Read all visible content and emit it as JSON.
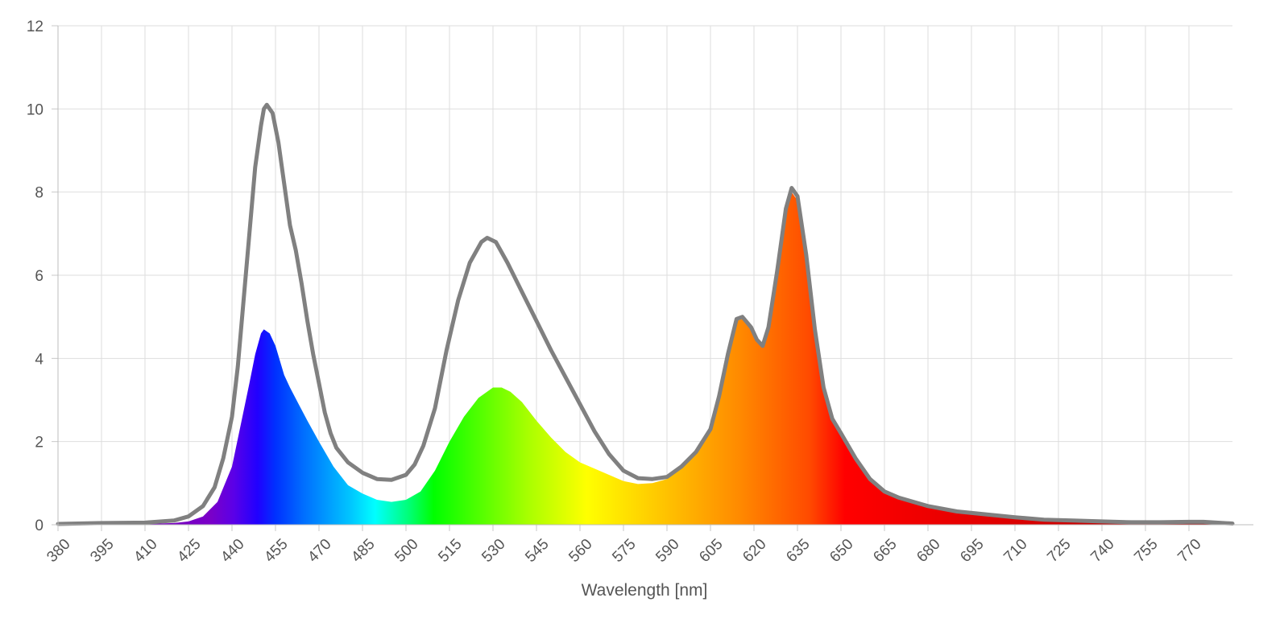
{
  "chart_data": {
    "type": "area",
    "xlabel": "Wavelength [nm]",
    "ylabel": "",
    "xlim": [
      380,
      785
    ],
    "ylim": [
      0,
      12
    ],
    "grid": true,
    "x_ticks": [
      380,
      395,
      410,
      425,
      440,
      455,
      470,
      485,
      500,
      515,
      530,
      545,
      560,
      575,
      590,
      605,
      620,
      635,
      650,
      665,
      680,
      695,
      710,
      725,
      740,
      755,
      770
    ],
    "x_tick_labels": [
      "380",
      "395",
      "410",
      "425",
      "440",
      "455",
      "470",
      "485",
      "500",
      "515",
      "530",
      "545",
      "560",
      "575",
      "590",
      "605",
      "620",
      "635",
      "650",
      "665",
      "680",
      "695",
      "710",
      "725",
      "740",
      "755",
      "770"
    ],
    "y_ticks": [
      0,
      2,
      4,
      6,
      8,
      10,
      12
    ],
    "y_tick_labels": [
      "0",
      "2",
      "4",
      "6",
      "8",
      "10",
      "12"
    ],
    "series": [
      {
        "style": "filled-spectrum",
        "points": [
          [
            380,
            0.02
          ],
          [
            395,
            0.03
          ],
          [
            410,
            0.02
          ],
          [
            420,
            0.04
          ],
          [
            425,
            0.08
          ],
          [
            430,
            0.2
          ],
          [
            435,
            0.55
          ],
          [
            440,
            1.4
          ],
          [
            443,
            2.4
          ],
          [
            446,
            3.4
          ],
          [
            448,
            4.1
          ],
          [
            450,
            4.6
          ],
          [
            451,
            4.7
          ],
          [
            453,
            4.6
          ],
          [
            455,
            4.3
          ],
          [
            458,
            3.6
          ],
          [
            460,
            3.3
          ],
          [
            463,
            2.9
          ],
          [
            466,
            2.5
          ],
          [
            470,
            2.0
          ],
          [
            475,
            1.4
          ],
          [
            480,
            0.95
          ],
          [
            485,
            0.75
          ],
          [
            490,
            0.6
          ],
          [
            495,
            0.55
          ],
          [
            500,
            0.6
          ],
          [
            505,
            0.8
          ],
          [
            510,
            1.3
          ],
          [
            515,
            2.0
          ],
          [
            520,
            2.6
          ],
          [
            525,
            3.05
          ],
          [
            530,
            3.3
          ],
          [
            533,
            3.3
          ],
          [
            536,
            3.2
          ],
          [
            540,
            2.95
          ],
          [
            545,
            2.5
          ],
          [
            550,
            2.1
          ],
          [
            555,
            1.75
          ],
          [
            560,
            1.5
          ],
          [
            565,
            1.35
          ],
          [
            570,
            1.2
          ],
          [
            575,
            1.05
          ],
          [
            580,
            0.98
          ],
          [
            585,
            1.0
          ],
          [
            590,
            1.1
          ],
          [
            595,
            1.35
          ],
          [
            600,
            1.75
          ],
          [
            605,
            2.3
          ],
          [
            608,
            3.1
          ],
          [
            611,
            4.1
          ],
          [
            614,
            4.9
          ],
          [
            616,
            4.95
          ],
          [
            619,
            4.7
          ],
          [
            621,
            4.4
          ],
          [
            623,
            4.3
          ],
          [
            625,
            4.7
          ],
          [
            628,
            6.0
          ],
          [
            631,
            7.5
          ],
          [
            633,
            8.0
          ],
          [
            635,
            7.8
          ],
          [
            638,
            6.4
          ],
          [
            641,
            4.6
          ],
          [
            644,
            3.2
          ],
          [
            647,
            2.5
          ],
          [
            650,
            2.2
          ],
          [
            655,
            1.6
          ],
          [
            660,
            1.1
          ],
          [
            665,
            0.8
          ],
          [
            670,
            0.65
          ],
          [
            680,
            0.45
          ],
          [
            690,
            0.32
          ],
          [
            700,
            0.25
          ],
          [
            710,
            0.18
          ],
          [
            720,
            0.12
          ],
          [
            730,
            0.1
          ],
          [
            740,
            0.08
          ],
          [
            750,
            0.06
          ],
          [
            760,
            0.06
          ],
          [
            770,
            0.07
          ],
          [
            775,
            0.07
          ],
          [
            785,
            0.03
          ]
        ]
      },
      {
        "style": "gray-outline",
        "color": "#808080",
        "points": [
          [
            380,
            0.02
          ],
          [
            395,
            0.04
          ],
          [
            410,
            0.05
          ],
          [
            420,
            0.1
          ],
          [
            425,
            0.2
          ],
          [
            430,
            0.45
          ],
          [
            434,
            0.9
          ],
          [
            437,
            1.6
          ],
          [
            440,
            2.6
          ],
          [
            442,
            3.8
          ],
          [
            444,
            5.4
          ],
          [
            446,
            7.0
          ],
          [
            448,
            8.6
          ],
          [
            450,
            9.6
          ],
          [
            451,
            10.0
          ],
          [
            452,
            10.1
          ],
          [
            454,
            9.9
          ],
          [
            456,
            9.2
          ],
          [
            458,
            8.2
          ],
          [
            460,
            7.2
          ],
          [
            462,
            6.6
          ],
          [
            464,
            5.8
          ],
          [
            466,
            4.9
          ],
          [
            468,
            4.1
          ],
          [
            470,
            3.4
          ],
          [
            472,
            2.7
          ],
          [
            474,
            2.2
          ],
          [
            476,
            1.85
          ],
          [
            480,
            1.5
          ],
          [
            485,
            1.25
          ],
          [
            490,
            1.1
          ],
          [
            495,
            1.08
          ],
          [
            500,
            1.2
          ],
          [
            503,
            1.45
          ],
          [
            506,
            1.9
          ],
          [
            510,
            2.8
          ],
          [
            514,
            4.2
          ],
          [
            518,
            5.4
          ],
          [
            522,
            6.3
          ],
          [
            526,
            6.8
          ],
          [
            528,
            6.9
          ],
          [
            531,
            6.8
          ],
          [
            535,
            6.3
          ],
          [
            540,
            5.6
          ],
          [
            545,
            4.9
          ],
          [
            550,
            4.2
          ],
          [
            555,
            3.55
          ],
          [
            560,
            2.9
          ],
          [
            565,
            2.25
          ],
          [
            570,
            1.7
          ],
          [
            575,
            1.3
          ],
          [
            580,
            1.12
          ],
          [
            585,
            1.1
          ],
          [
            590,
            1.15
          ],
          [
            595,
            1.4
          ],
          [
            600,
            1.75
          ],
          [
            605,
            2.3
          ],
          [
            608,
            3.1
          ],
          [
            611,
            4.1
          ],
          [
            614,
            4.95
          ],
          [
            616,
            5.0
          ],
          [
            619,
            4.75
          ],
          [
            621,
            4.45
          ],
          [
            623,
            4.3
          ],
          [
            625,
            4.75
          ],
          [
            628,
            6.1
          ],
          [
            631,
            7.6
          ],
          [
            633,
            8.1
          ],
          [
            635,
            7.9
          ],
          [
            638,
            6.5
          ],
          [
            641,
            4.7
          ],
          [
            644,
            3.3
          ],
          [
            647,
            2.55
          ],
          [
            650,
            2.2
          ],
          [
            655,
            1.6
          ],
          [
            660,
            1.1
          ],
          [
            665,
            0.8
          ],
          [
            670,
            0.65
          ],
          [
            680,
            0.45
          ],
          [
            690,
            0.32
          ],
          [
            700,
            0.25
          ],
          [
            710,
            0.18
          ],
          [
            720,
            0.12
          ],
          [
            730,
            0.1
          ],
          [
            740,
            0.08
          ],
          [
            750,
            0.06
          ],
          [
            760,
            0.06
          ],
          [
            770,
            0.07
          ],
          [
            775,
            0.07
          ],
          [
            785,
            0.03
          ]
        ]
      }
    ]
  }
}
